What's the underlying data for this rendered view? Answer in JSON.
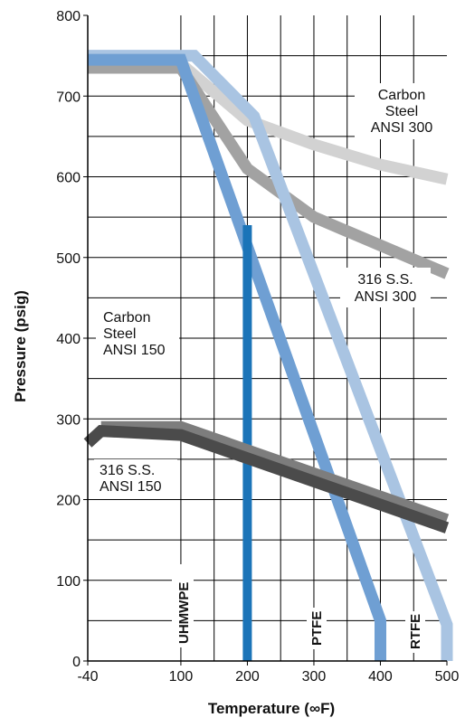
{
  "chart_data": {
    "type": "line",
    "xlabel": "Temperature (∞F)",
    "ylabel": "Pressure (psig)",
    "xlim": [
      -40,
      500
    ],
    "ylim": [
      0,
      800
    ],
    "x_ticks": [
      -40,
      100,
      200,
      300,
      400,
      500
    ],
    "y_ticks": [
      0,
      100,
      200,
      300,
      400,
      500,
      600,
      700,
      800
    ],
    "grid": true,
    "series": [
      {
        "name": "Carbon Steel ANSI 300",
        "color": "#d2d2d2",
        "points": [
          [
            -40,
            740
          ],
          [
            100,
            740
          ],
          [
            200,
            670
          ],
          [
            300,
            640
          ],
          [
            400,
            615
          ],
          [
            500,
            597
          ]
        ]
      },
      {
        "name": "316 S.S. ANSI 300",
        "color": "#a2a2a2",
        "points": [
          [
            -40,
            735
          ],
          [
            100,
            735
          ],
          [
            200,
            610
          ],
          [
            300,
            550
          ],
          [
            400,
            515
          ],
          [
            500,
            480
          ]
        ]
      },
      {
        "name": "RTFE",
        "color": "#a9c4e2",
        "points": [
          [
            -40,
            750
          ],
          [
            120,
            750
          ],
          [
            210,
            675
          ],
          [
            500,
            45
          ],
          [
            500,
            0
          ]
        ]
      },
      {
        "name": "PTFE",
        "color": "#6f9fd3",
        "points": [
          [
            -40,
            745
          ],
          [
            100,
            745
          ],
          [
            400,
            50
          ],
          [
            400,
            0
          ]
        ]
      },
      {
        "name": "UHMWPE",
        "color": "#1b74b8",
        "points": [
          [
            200,
            540
          ],
          [
            200,
            0
          ]
        ]
      },
      {
        "name": "Carbon Steel ANSI 150",
        "color": "#7d7d7d",
        "points": [
          [
            -20,
            290
          ],
          [
            100,
            290
          ],
          [
            500,
            175
          ]
        ]
      },
      {
        "name": "316 S.S. ANSI 150",
        "color": "#4b4b4b",
        "points": [
          [
            -40,
            270
          ],
          [
            -20,
            285
          ],
          [
            100,
            280
          ],
          [
            500,
            165
          ]
        ]
      }
    ],
    "annotations": {
      "carbon_steel_300": [
        "Carbon",
        "Steel",
        "ANSI 300"
      ],
      "ss_300": [
        "316 S.S.",
        "ANSI 300"
      ],
      "carbon_steel_150": [
        "Carbon",
        "Steel",
        "ANSI 150"
      ],
      "ss_150": [
        "316 S.S.",
        "ANSI 150"
      ],
      "uhmwpe": "UHMWPE",
      "ptfe": "PTFE",
      "rtfe": "RTFE"
    }
  }
}
